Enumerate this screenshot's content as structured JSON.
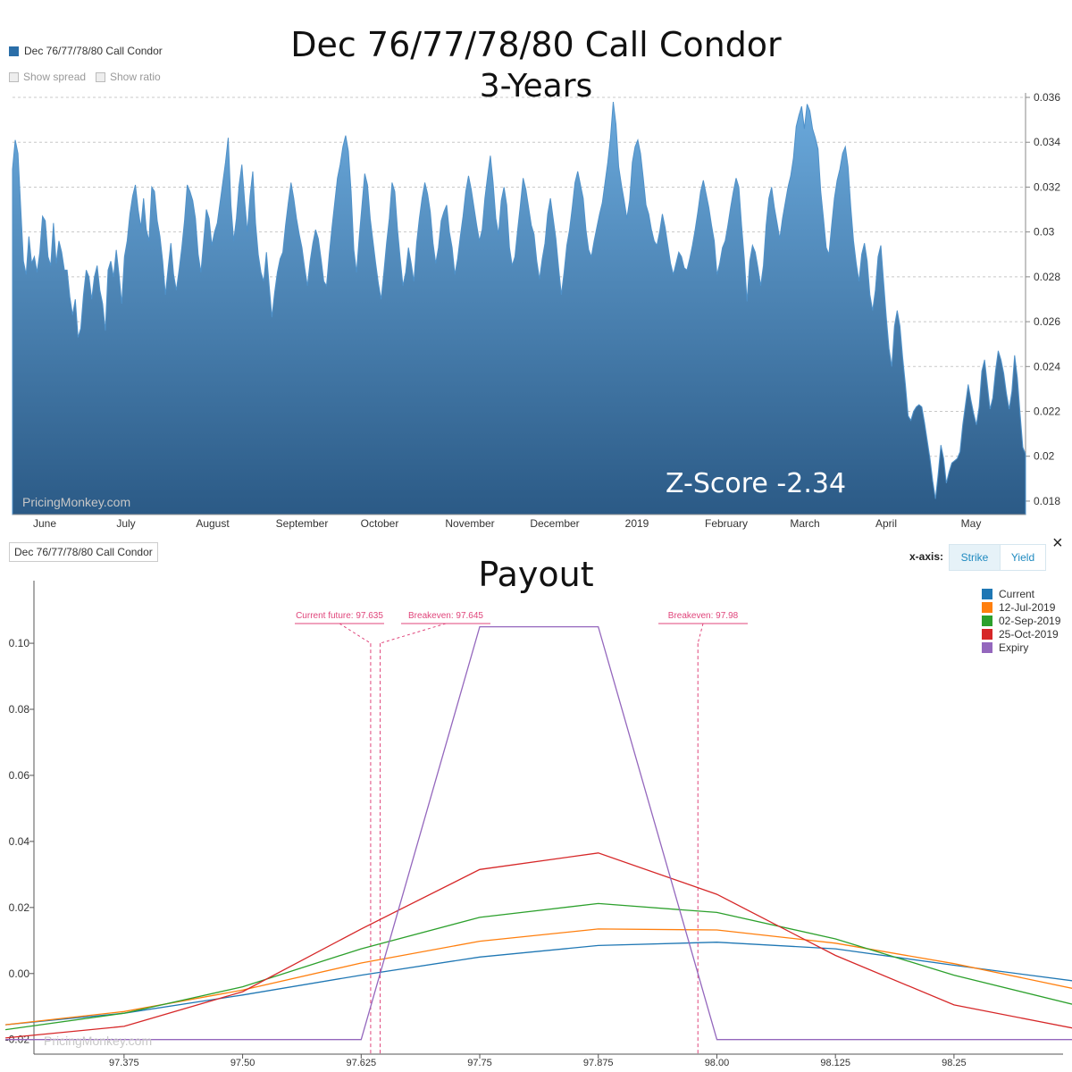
{
  "top_chart": {
    "title_line1": "Dec 76/77/78/80 Call Condor",
    "title_line2": "3-Years",
    "legend_label": "Dec 76/77/78/80 Call Condor",
    "show_spread_label": "Show spread",
    "show_ratio_label": "Show ratio",
    "zscore_label": "Z-Score -2.34",
    "watermark": "PricingMonkey.com",
    "fill_color_top": "#6aa9dc",
    "fill_color_bottom": "#2b5a86"
  },
  "bottom_chart": {
    "title": "Payout",
    "series_box_label": "Dec 76/77/78/80 Call Condor",
    "xaxis_label": "x-axis:",
    "strike_button": "Strike",
    "yield_button": "Yield",
    "close_icon": "×",
    "watermark": "PricingMonkey.com",
    "annotations": [
      {
        "label": "Current future: 97.635",
        "x": 97.635
      },
      {
        "label": "Breakeven: 97.645",
        "x": 97.645
      },
      {
        "label": "Breakeven: 97.98",
        "x": 97.98
      }
    ]
  },
  "chart_data": [
    {
      "type": "area",
      "title": "Dec 76/77/78/80 Call Condor",
      "subtitle": "3-Years",
      "x_tick_labels": [
        "June",
        "July",
        "August",
        "September",
        "October",
        "November",
        "December",
        "2019",
        "February",
        "March",
        "April",
        "May"
      ],
      "y_ticks": [
        "0.018",
        "0.02",
        "0.022",
        "0.024",
        "0.026",
        "0.028",
        "0.03",
        "0.032",
        "0.034",
        "0.036"
      ],
      "ylim": [
        0.0174,
        0.0362
      ],
      "grid": "horizontal dashed",
      "legend": "top-left",
      "series": [
        {
          "name": "Dec 76/77/78/80 Call Condor",
          "values": [
            0.0328,
            0.0341,
            0.0335,
            0.0311,
            0.0287,
            0.0281,
            0.0298,
            0.0286,
            0.0289,
            0.0282,
            0.0291,
            0.0307,
            0.0305,
            0.0289,
            0.0285,
            0.0304,
            0.0286,
            0.0296,
            0.0291,
            0.0283,
            0.0283,
            0.0271,
            0.0263,
            0.027,
            0.0253,
            0.0257,
            0.0272,
            0.0283,
            0.028,
            0.027,
            0.028,
            0.0285,
            0.0274,
            0.0268,
            0.0256,
            0.0283,
            0.0287,
            0.028,
            0.0292,
            0.0281,
            0.0268,
            0.0289,
            0.0296,
            0.0308,
            0.0316,
            0.0321,
            0.031,
            0.0302,
            0.0315,
            0.0301,
            0.0296,
            0.032,
            0.0318,
            0.0305,
            0.0298,
            0.0287,
            0.0272,
            0.0284,
            0.0295,
            0.0281,
            0.0274,
            0.0283,
            0.0293,
            0.0305,
            0.0321,
            0.0318,
            0.0314,
            0.0306,
            0.029,
            0.0282,
            0.0296,
            0.031,
            0.0306,
            0.0294,
            0.03,
            0.0304,
            0.0313,
            0.0322,
            0.0331,
            0.0342,
            0.0312,
            0.0296,
            0.0306,
            0.0321,
            0.033,
            0.0314,
            0.03,
            0.0316,
            0.0327,
            0.0304,
            0.029,
            0.0282,
            0.0278,
            0.0291,
            0.0276,
            0.0262,
            0.0273,
            0.0282,
            0.0288,
            0.0291,
            0.0303,
            0.0313,
            0.0322,
            0.0315,
            0.0306,
            0.0299,
            0.0293,
            0.0284,
            0.0276,
            0.0287,
            0.0295,
            0.0301,
            0.0297,
            0.0288,
            0.0278,
            0.0276,
            0.029,
            0.0302,
            0.0313,
            0.0324,
            0.033,
            0.0338,
            0.0343,
            0.0336,
            0.0318,
            0.0292,
            0.0282,
            0.0298,
            0.0312,
            0.0326,
            0.0321,
            0.0306,
            0.0296,
            0.0286,
            0.0277,
            0.027,
            0.0282,
            0.0295,
            0.0306,
            0.0322,
            0.0318,
            0.0301,
            0.0288,
            0.0276,
            0.0282,
            0.0293,
            0.0286,
            0.0278,
            0.0295,
            0.0306,
            0.0315,
            0.0322,
            0.0317,
            0.0309,
            0.0295,
            0.0286,
            0.0293,
            0.0305,
            0.0309,
            0.0312,
            0.03,
            0.0293,
            0.0281,
            0.0288,
            0.0298,
            0.0307,
            0.0318,
            0.0325,
            0.0319,
            0.0311,
            0.0303,
            0.0296,
            0.0301,
            0.0315,
            0.0325,
            0.0334,
            0.0322,
            0.0306,
            0.0299,
            0.0314,
            0.032,
            0.0312,
            0.0293,
            0.0285,
            0.0289,
            0.0301,
            0.0312,
            0.0324,
            0.0319,
            0.0311,
            0.0303,
            0.0299,
            0.0287,
            0.0279,
            0.0288,
            0.0295,
            0.0308,
            0.0315,
            0.0306,
            0.0297,
            0.0284,
            0.0272,
            0.0282,
            0.0294,
            0.0301,
            0.0311,
            0.0322,
            0.0327,
            0.0321,
            0.0315,
            0.0301,
            0.0292,
            0.0289,
            0.0296,
            0.0302,
            0.0308,
            0.0313,
            0.0322,
            0.0331,
            0.0342,
            0.0358,
            0.0348,
            0.0329,
            0.0321,
            0.0314,
            0.0306,
            0.0314,
            0.0331,
            0.0338,
            0.0341,
            0.0335,
            0.0324,
            0.0312,
            0.0308,
            0.0301,
            0.0296,
            0.0294,
            0.03,
            0.0308,
            0.0302,
            0.0294,
            0.0286,
            0.0281,
            0.0286,
            0.0291,
            0.0289,
            0.0284,
            0.0283,
            0.0288,
            0.0294,
            0.0301,
            0.0309,
            0.0318,
            0.0323,
            0.0317,
            0.0311,
            0.0303,
            0.0296,
            0.0281,
            0.0286,
            0.0293,
            0.0296,
            0.0303,
            0.0311,
            0.0318,
            0.0324,
            0.032,
            0.0303,
            0.0288,
            0.0269,
            0.0287,
            0.0294,
            0.0291,
            0.0284,
            0.0276,
            0.0285,
            0.0303,
            0.0315,
            0.032,
            0.0311,
            0.0304,
            0.0297,
            0.0306,
            0.0313,
            0.032,
            0.0325,
            0.0333,
            0.0347,
            0.0352,
            0.0356,
            0.0346,
            0.0357,
            0.0354,
            0.0346,
            0.0342,
            0.0337,
            0.0318,
            0.0306,
            0.0293,
            0.029,
            0.0303,
            0.0315,
            0.0323,
            0.0328,
            0.0335,
            0.0338,
            0.0329,
            0.0311,
            0.0296,
            0.0286,
            0.0278,
            0.029,
            0.0295,
            0.0287,
            0.0272,
            0.0265,
            0.0274,
            0.0289,
            0.0294,
            0.0278,
            0.0262,
            0.0248,
            0.024,
            0.0258,
            0.0265,
            0.0258,
            0.0244,
            0.0232,
            0.0218,
            0.0216,
            0.022,
            0.0222,
            0.0223,
            0.0222,
            0.0215,
            0.0207,
            0.0199,
            0.0189,
            0.0181,
            0.0192,
            0.0205,
            0.0199,
            0.0188,
            0.0193,
            0.0197,
            0.0198,
            0.0199,
            0.0202,
            0.0214,
            0.0223,
            0.0232,
            0.0225,
            0.0219,
            0.0214,
            0.0222,
            0.0238,
            0.0243,
            0.0232,
            0.0221,
            0.0226,
            0.0238,
            0.0247,
            0.0243,
            0.0237,
            0.0228,
            0.0221,
            0.0229,
            0.0245,
            0.0235,
            0.0219,
            0.0204,
            0.0201
          ]
        }
      ]
    },
    {
      "type": "line",
      "title": "Payout",
      "x": [
        97.25,
        97.375,
        97.5,
        97.625,
        97.75,
        97.875,
        98.0,
        98.125,
        98.25,
        98.375
      ],
      "x_tick_labels": [
        "97.375",
        "97.50",
        "97.625",
        "97.75",
        "97.875",
        "98.00",
        "98.125",
        "98.25"
      ],
      "y_ticks": [
        "-0.02",
        "0.00",
        "0.02",
        "0.04",
        "0.06",
        "0.08",
        "0.10"
      ],
      "xlim": [
        97.28,
        98.365
      ],
      "ylim": [
        -0.0244,
        0.1176
      ],
      "legend": "top-right",
      "series": [
        {
          "name": "Current",
          "color": "#1f77b4",
          "values": [
            -0.0155,
            -0.012,
            -0.0065,
            -0.0005,
            0.005,
            0.0085,
            0.0095,
            0.0075,
            0.0025,
            -0.0022
          ]
        },
        {
          "name": "12-Jul-2019",
          "color": "#ff7f0e",
          "values": [
            -0.0155,
            -0.0115,
            -0.005,
            0.0032,
            0.0098,
            0.0135,
            0.0132,
            0.0092,
            0.003,
            -0.0045
          ]
        },
        {
          "name": "02-Sep-2019",
          "color": "#2ca02c",
          "values": [
            -0.017,
            -0.012,
            -0.004,
            0.0075,
            0.017,
            0.0212,
            0.0185,
            0.0105,
            -0.0005,
            -0.0093
          ]
        },
        {
          "name": "25-Oct-2019",
          "color": "#d62728",
          "values": [
            -0.0195,
            -0.016,
            -0.0055,
            0.0135,
            0.0315,
            0.0365,
            0.024,
            0.0055,
            -0.0095,
            -0.0165
          ]
        },
        {
          "name": "Expiry",
          "color": "#9467bd",
          "values": [
            -0.02,
            -0.02,
            -0.02,
            -0.02,
            0.105,
            0.105,
            -0.02,
            -0.02,
            -0.02,
            -0.02
          ]
        }
      ]
    }
  ]
}
